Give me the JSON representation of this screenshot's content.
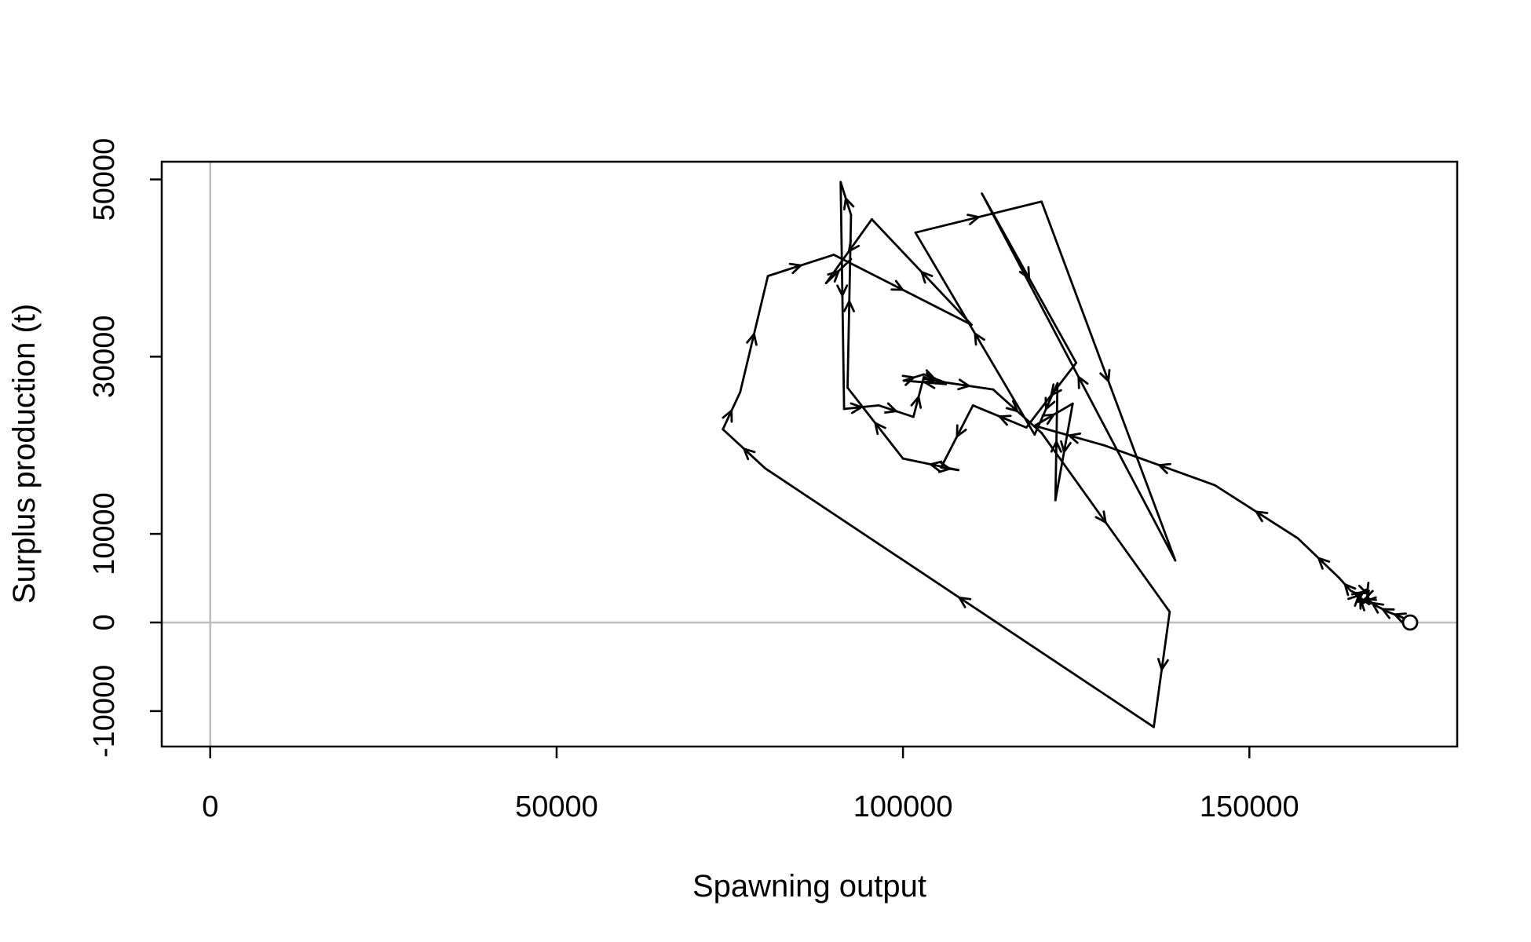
{
  "chart_data": {
    "type": "line",
    "title": "",
    "xlabel": "Spawning output",
    "ylabel": "Surplus production (t)",
    "xlim": [
      -7000,
      180000
    ],
    "ylim": [
      -14000,
      52000
    ],
    "x_ticks": [
      0,
      50000,
      100000,
      150000
    ],
    "x_tick_labels": [
      "0",
      "50000",
      "100000",
      "150000"
    ],
    "y_ticks": [
      -10000,
      0,
      10000,
      30000,
      50000
    ],
    "y_tick_labels": [
      "-10000",
      "0",
      "10000",
      "30000",
      "50000"
    ],
    "reference_lines": {
      "x": 0,
      "y": 0,
      "color": "#bebebe"
    },
    "grid": false,
    "line_color": "#000000",
    "start_marker": "open-circle",
    "series": [
      {
        "x": [
          173200,
          172000,
          170000,
          168500,
          167000,
          166500,
          165600,
          166000,
          166800,
          167200,
          166200,
          165800,
          164600,
          163000,
          157000,
          145000,
          129000,
          119000,
          124500,
          122000,
          122300,
          119000,
          101800,
          120000,
          139300,
          111400,
          125000,
          117800,
          110100,
          105500,
          108000,
          100000,
          92000,
          92500,
          91000,
          91500,
          96500,
          101500,
          103000,
          106200,
          100100,
          103000,
          106000,
          113000,
          120000,
          138500,
          136200,
          80100,
          74000,
          76500,
          80500,
          90000,
          109900,
          95500,
          88900,
          92500
        ],
        "y": [
          0,
          600,
          1200,
          1800,
          2600,
          2200,
          2900,
          3200,
          3700,
          2800,
          2500,
          3100,
          3600,
          5000,
          9500,
          15500,
          20000,
          22200,
          24700,
          13800,
          27000,
          21200,
          44000,
          47500,
          7000,
          48400,
          29300,
          22000,
          24500,
          17500,
          17200,
          18500,
          26500,
          46000,
          49700,
          24100,
          24500,
          23200,
          27700,
          26900,
          27300,
          28000,
          27100,
          26300,
          21400,
          1200,
          -11800,
          17400,
          21800,
          26000,
          39100,
          41500,
          33600,
          45500,
          38300,
          41000
        ]
      }
    ]
  }
}
